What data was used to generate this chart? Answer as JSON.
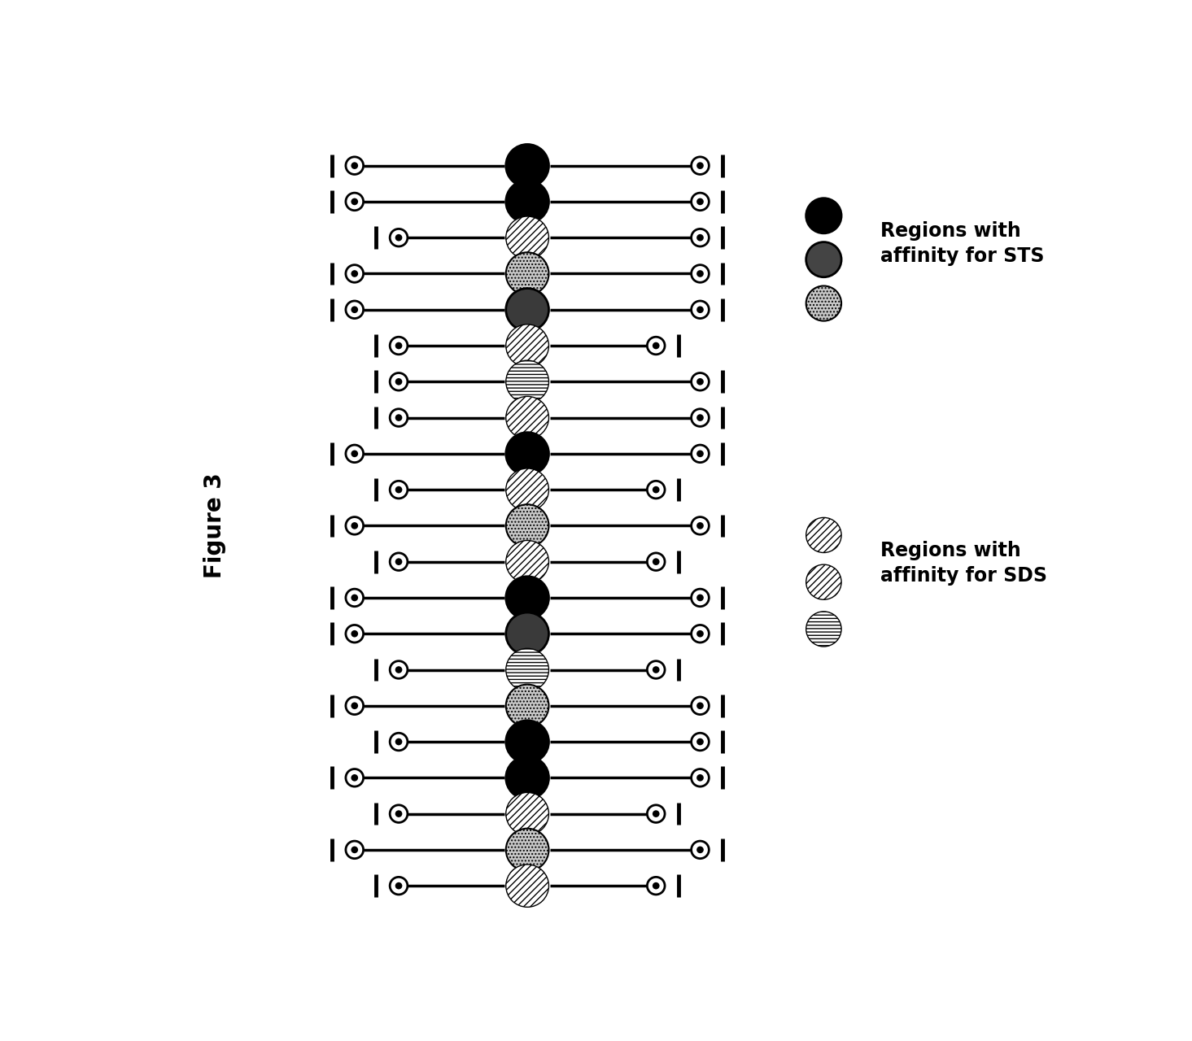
{
  "bg_color": "#ffffff",
  "figure_label": "Figure 3",
  "legend_STS_label1": "Regions with",
  "legend_STS_label2": "affinity for STS",
  "legend_SDS_label1": "Regions with",
  "legend_SDS_label2": "affinity for SDS",
  "bead_sequence": [
    "black",
    "black",
    "diag_hatch",
    "dotted",
    "dark_solid",
    "diag_hatch",
    "horiz_hatch",
    "diag_hatch",
    "black",
    "diag_hatch",
    "dotted",
    "diag_hatch",
    "black",
    "dark_solid",
    "horiz_hatch",
    "dotted",
    "black",
    "black",
    "diag_hatch",
    "dotted",
    "diag_hatch"
  ],
  "tether_rows": [
    {
      "L_indent": 0,
      "R_indent": 0
    },
    {
      "L_indent": 0,
      "R_indent": 0
    },
    {
      "L_indent": 1,
      "R_indent": 0
    },
    {
      "L_indent": 0,
      "R_indent": 0
    },
    {
      "L_indent": 0,
      "R_indent": 0
    },
    {
      "L_indent": 1,
      "R_indent": 1
    },
    {
      "L_indent": 1,
      "R_indent": 0
    },
    {
      "L_indent": 1,
      "R_indent": 0
    },
    {
      "L_indent": 0,
      "R_indent": 0
    },
    {
      "L_indent": 1,
      "R_indent": 1
    },
    {
      "L_indent": 0,
      "R_indent": 0
    },
    {
      "L_indent": 1,
      "R_indent": 1
    },
    {
      "L_indent": 0,
      "R_indent": 0
    },
    {
      "L_indent": 0,
      "R_indent": 0
    },
    {
      "L_indent": 1,
      "R_indent": 1
    },
    {
      "L_indent": 0,
      "R_indent": 0
    },
    {
      "L_indent": 1,
      "R_indent": 0
    },
    {
      "L_indent": 0,
      "R_indent": 0
    },
    {
      "L_indent": 1,
      "R_indent": 1
    },
    {
      "L_indent": 0,
      "R_indent": 0
    },
    {
      "L_indent": 1,
      "R_indent": 1
    }
  ]
}
